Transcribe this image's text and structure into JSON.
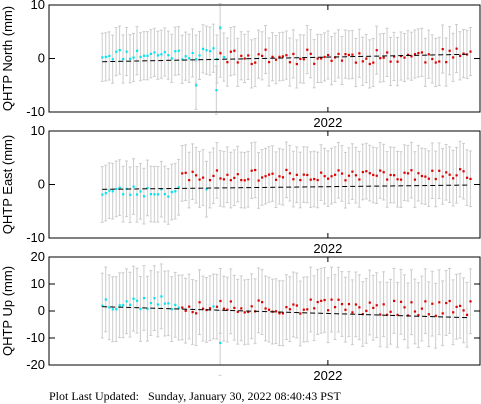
{
  "footer": {
    "label": "Plot Last Updated:",
    "timestamp": "Sunday, January 30, 2022 08:40:43 PST"
  },
  "colors": {
    "early": "#00e5ee",
    "late": "#dd0000",
    "errorbar": "#cccccc",
    "trend": "#000000"
  },
  "chart_data": [
    {
      "type": "scatter",
      "ylabel": "QHTP North (mm)",
      "xlabel": "2022",
      "xlim": [
        2021.78,
        2022.12
      ],
      "ylim": [
        -10,
        10
      ],
      "yticks": [
        -10,
        0,
        10
      ],
      "xtick_label": "2022",
      "xtick_value": 2022.0,
      "errorbar_mm": 4.5,
      "trend": {
        "start": -0.6,
        "end": 0.8
      },
      "split_at": 2021.915,
      "seed": 11,
      "early": {
        "offset": 0.8,
        "slope": 0.3,
        "scatter": 1.1
      },
      "late": {
        "offset": 0.1,
        "slope": 0.4,
        "scatter": 1.4
      },
      "outliers": [
        {
          "x": 2021.912,
          "y": -5.9
        },
        {
          "x": 2021.896,
          "y": -5.0
        },
        {
          "x": 2021.915,
          "y": 5.8
        }
      ]
    },
    {
      "type": "scatter",
      "ylabel": "QHTP East (mm)",
      "xlabel": "2022",
      "xlim": [
        2021.78,
        2022.12
      ],
      "ylim": [
        -10,
        10
      ],
      "yticks": [
        -10,
        0,
        10
      ],
      "xtick_label": "2022",
      "xtick_value": 2022.0,
      "errorbar_mm": 5.2,
      "trend": {
        "start": -0.9,
        "end": -0.1
      },
      "split_at": 2021.885,
      "seed": 23,
      "early": {
        "offset": -1.3,
        "slope": 0.4,
        "scatter": 1.1
      },
      "late": {
        "offset": 1.6,
        "slope": 0.3,
        "scatter": 1.0
      },
      "outliers": []
    },
    {
      "type": "scatter",
      "ylabel": "QHTP Up (mm)",
      "xlabel": "2022",
      "xlim": [
        2021.78,
        2022.12
      ],
      "ylim": [
        -20,
        20
      ],
      "yticks": [
        -20,
        -10,
        0,
        10,
        20
      ],
      "xtick_label": "2022",
      "xtick_value": 2022.0,
      "errorbar_mm": 12,
      "trend": {
        "start": 1.6,
        "end": -2.5
      },
      "split_at": 2021.885,
      "seed": 37,
      "early": {
        "offset": 3.5,
        "slope": -2.0,
        "scatter": 3.0
      },
      "late": {
        "offset": 2.5,
        "slope": -1.5,
        "scatter": 3.0
      },
      "outliers": [
        {
          "x": 2021.915,
          "y": -11.8
        }
      ]
    }
  ]
}
